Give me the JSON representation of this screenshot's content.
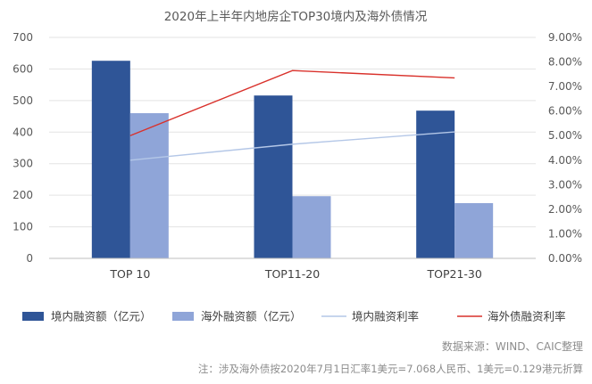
{
  "chart_data": {
    "type": "bar",
    "title": "2020年上半年内地房企TOP30境内及海外债情况",
    "categories": [
      "TOP 10",
      "TOP11-20",
      "TOP21-30"
    ],
    "series": [
      {
        "name": "境内融资额（亿元）",
        "kind": "bar",
        "axis": "left",
        "color": "#2F5597",
        "values": [
          626,
          516,
          468
        ]
      },
      {
        "name": "海外融资额（亿元）",
        "kind": "bar",
        "axis": "left",
        "color": "#8FA5D8",
        "values": [
          460,
          197,
          175
        ]
      },
      {
        "name": "境内融资利率",
        "kind": "line",
        "axis": "right",
        "color": "#B4C7E7",
        "values": [
          0.04,
          0.0465,
          0.0515
        ]
      },
      {
        "name": "海外债融资利率",
        "kind": "line",
        "axis": "right",
        "color": "#D9312B",
        "values": [
          0.05,
          0.0765,
          0.0735
        ]
      }
    ],
    "y_left": {
      "min": 0,
      "max": 700,
      "step": 100,
      "ticks": [
        "0",
        "100",
        "200",
        "300",
        "400",
        "500",
        "600",
        "700"
      ]
    },
    "y_right": {
      "min": 0,
      "max": 0.09,
      "step": 0.01,
      "ticks": [
        "0.00%",
        "1.00%",
        "2.00%",
        "3.00%",
        "4.00%",
        "5.00%",
        "6.00%",
        "7.00%",
        "8.00%",
        "9.00%"
      ]
    },
    "grid": true,
    "legend_position": "bottom"
  },
  "notes": {
    "source": "数据来源：WIND、CAIC整理",
    "footer": "注：涉及海外债按2020年7月1日汇率1美元=7.068人民币、1美元=0.129港元折算"
  }
}
